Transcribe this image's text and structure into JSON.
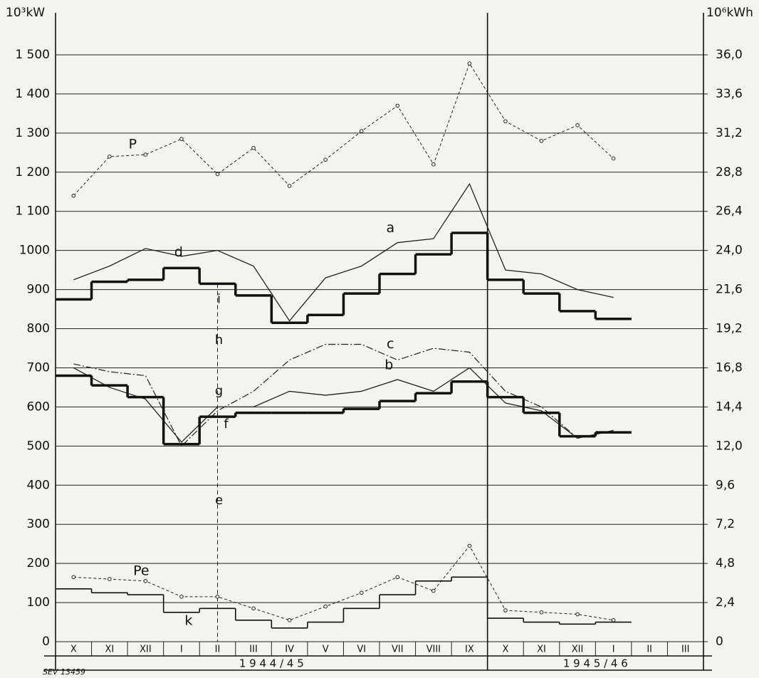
{
  "chart_data": {
    "type": "line",
    "ylabel": "10³kW",
    "y2label": "10⁶kWh",
    "categories": [
      "X",
      "XI",
      "XII",
      "I",
      "II",
      "III",
      "IV",
      "V",
      "VI",
      "VII",
      "VIII",
      "IX",
      "X",
      "XI",
      "XII",
      "I",
      "II",
      "III"
    ],
    "periods": [
      "1 9 4 4 / 4 5",
      "1 9 4 5 / 4 6"
    ],
    "ylim": [
      0,
      1500
    ],
    "yticks": [
      0,
      100,
      200,
      300,
      400,
      500,
      600,
      700,
      800,
      900,
      {
        "value": 1000,
        "label": "1000"
      },
      {
        "value": 1100,
        "label": "1 100"
      },
      {
        "value": 1200,
        "label": "1 200"
      },
      {
        "value": 1300,
        "label": "1 300"
      },
      {
        "value": 1400,
        "label": "1 400"
      },
      {
        "value": 1500,
        "label": "1 500"
      }
    ],
    "y2lim": [
      0,
      36
    ],
    "y2ticks": [
      0,
      {
        "value": 2.4,
        "label": "2,4"
      },
      {
        "value": 4.8,
        "label": "4,8"
      },
      {
        "value": 7.2,
        "label": "7,2"
      },
      {
        "value": 9.6,
        "label": "9,6"
      },
      {
        "value": 12,
        "label": "12,0"
      },
      {
        "value": 14.4,
        "label": "14,4"
      },
      {
        "value": 16.8,
        "label": "16,8"
      },
      {
        "value": 19.2,
        "label": "19,2"
      },
      {
        "value": 21.6,
        "label": "21,6"
      },
      {
        "value": 24,
        "label": "24,0"
      },
      {
        "value": 26.4,
        "label": "26,4"
      },
      {
        "value": 28.8,
        "label": "28,8"
      },
      {
        "value": 31.2,
        "label": "31,2"
      },
      {
        "value": 33.6,
        "label": "33,6"
      },
      {
        "value": 36,
        "label": "36,0"
      }
    ],
    "grid": true,
    "series": [
      {
        "name": "P",
        "style": "dashed-points",
        "color": "#222",
        "values": [
          1140,
          1240,
          1245,
          1285,
          1195,
          1262,
          1165,
          1232,
          1305,
          1370,
          1220,
          1478,
          1330,
          1280,
          1320,
          1235,
          null,
          null
        ]
      },
      {
        "name": "a",
        "style": "line",
        "color": "#222",
        "values": [
          925,
          960,
          1005,
          985,
          1000,
          960,
          820,
          930,
          960,
          1020,
          1030,
          1170,
          950,
          940,
          900,
          880,
          null,
          null
        ]
      },
      {
        "name": "d",
        "style": "step-thick",
        "color": "#111",
        "values": [
          875,
          920,
          925,
          955,
          915,
          885,
          815,
          835,
          890,
          940,
          990,
          1045,
          925,
          890,
          845,
          825,
          null,
          null
        ]
      },
      {
        "name": "c",
        "style": "dashdot",
        "color": "#222",
        "values": [
          710,
          690,
          680,
          500,
          590,
          640,
          720,
          760,
          760,
          720,
          750,
          740,
          640,
          600,
          520,
          540,
          null,
          null
        ]
      },
      {
        "name": "b",
        "style": "line",
        "color": "#222",
        "values": [
          700,
          650,
          620,
          510,
          600,
          600,
          640,
          630,
          640,
          670,
          640,
          700,
          610,
          590,
          520,
          540,
          null,
          null
        ]
      },
      {
        "style": "step-thick",
        "color": "#111",
        "values": [
          680,
          655,
          625,
          505,
          575,
          585,
          585,
          585,
          595,
          615,
          635,
          665,
          625,
          585,
          525,
          535,
          null,
          null
        ]
      },
      {
        "name": "Pe",
        "style": "dashed-points",
        "color": "#222",
        "values": [
          165,
          160,
          155,
          115,
          115,
          85,
          55,
          90,
          125,
          165,
          130,
          245,
          80,
          75,
          70,
          55,
          null,
          null
        ]
      },
      {
        "name": "k",
        "style": "step",
        "color": "#111",
        "values": [
          135,
          125,
          120,
          75,
          85,
          55,
          35,
          50,
          85,
          120,
          155,
          165,
          60,
          50,
          45,
          50,
          null,
          null
        ]
      }
    ],
    "annotations": [
      "e",
      "f",
      "g",
      "h",
      "i"
    ],
    "footer": "SEV 13459"
  }
}
